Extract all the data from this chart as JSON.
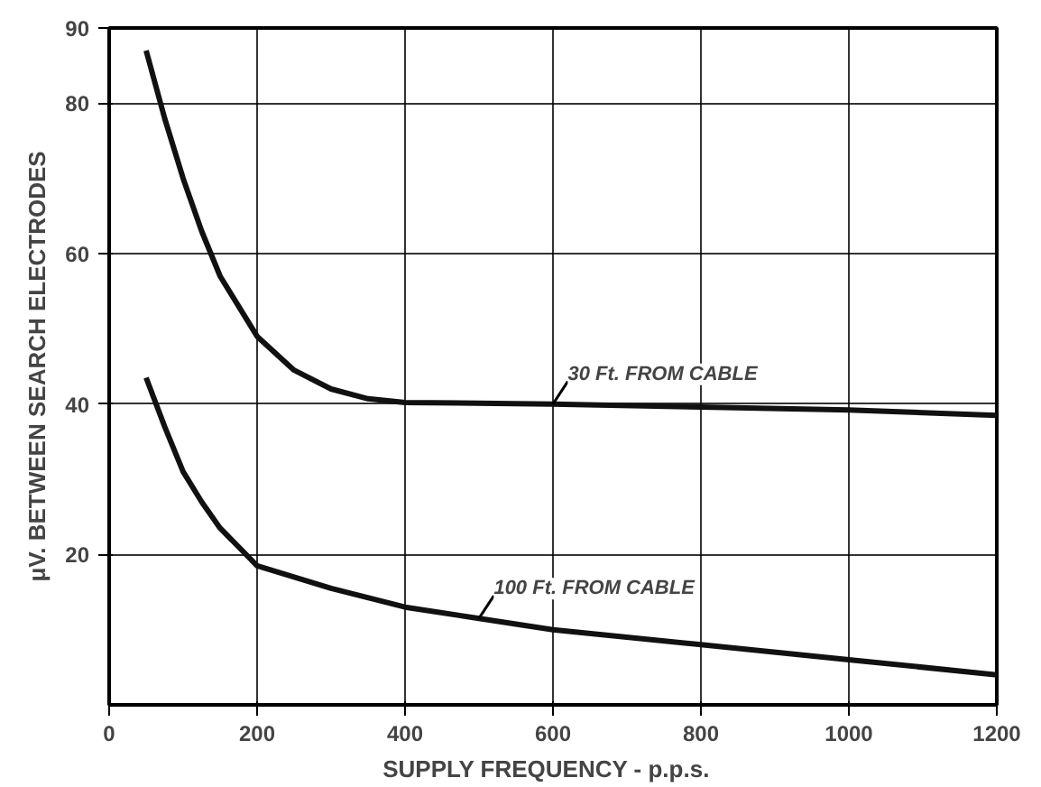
{
  "chart_data": {
    "type": "line",
    "xlabel": "SUPPLY  FREQUENCY  - p.p.s.",
    "ylabel": "μV. BETWEEN SEARCH ELECTRODES",
    "series": [
      {
        "color": "#111111",
        "x": [
          50,
          75,
          100,
          125,
          150,
          200,
          250,
          300,
          350,
          400,
          600,
          800,
          1000,
          1200
        ],
        "values": [
          87,
          78,
          70,
          63,
          57,
          49,
          44.5,
          42,
          40.7,
          40.2,
          40,
          39.6,
          39.2,
          38.5
        ]
      },
      {
        "color": "#111111",
        "x": [
          50,
          75,
          100,
          125,
          150,
          200,
          300,
          400,
          500,
          600,
          800,
          1000,
          1200
        ],
        "values": [
          43.5,
          37,
          31,
          27,
          23.5,
          18.5,
          15.5,
          13,
          11.5,
          10,
          8,
          6,
          4
        ]
      }
    ],
    "annotations": [
      {
        "text": "30 Ft. FROM CABLE",
        "x": 600,
        "y": 40
      },
      {
        "text": "100 Ft. FROM CABLE",
        "x": 500,
        "y": 11.5
      }
    ],
    "xlim": [
      0,
      1200
    ],
    "ylim": [
      0,
      90
    ],
    "xticks": [
      0,
      200,
      400,
      600,
      800,
      1000,
      1200
    ],
    "yticks": [
      20,
      40,
      60,
      80,
      90
    ],
    "grid": true,
    "marker": "none",
    "line_style": "solid"
  }
}
